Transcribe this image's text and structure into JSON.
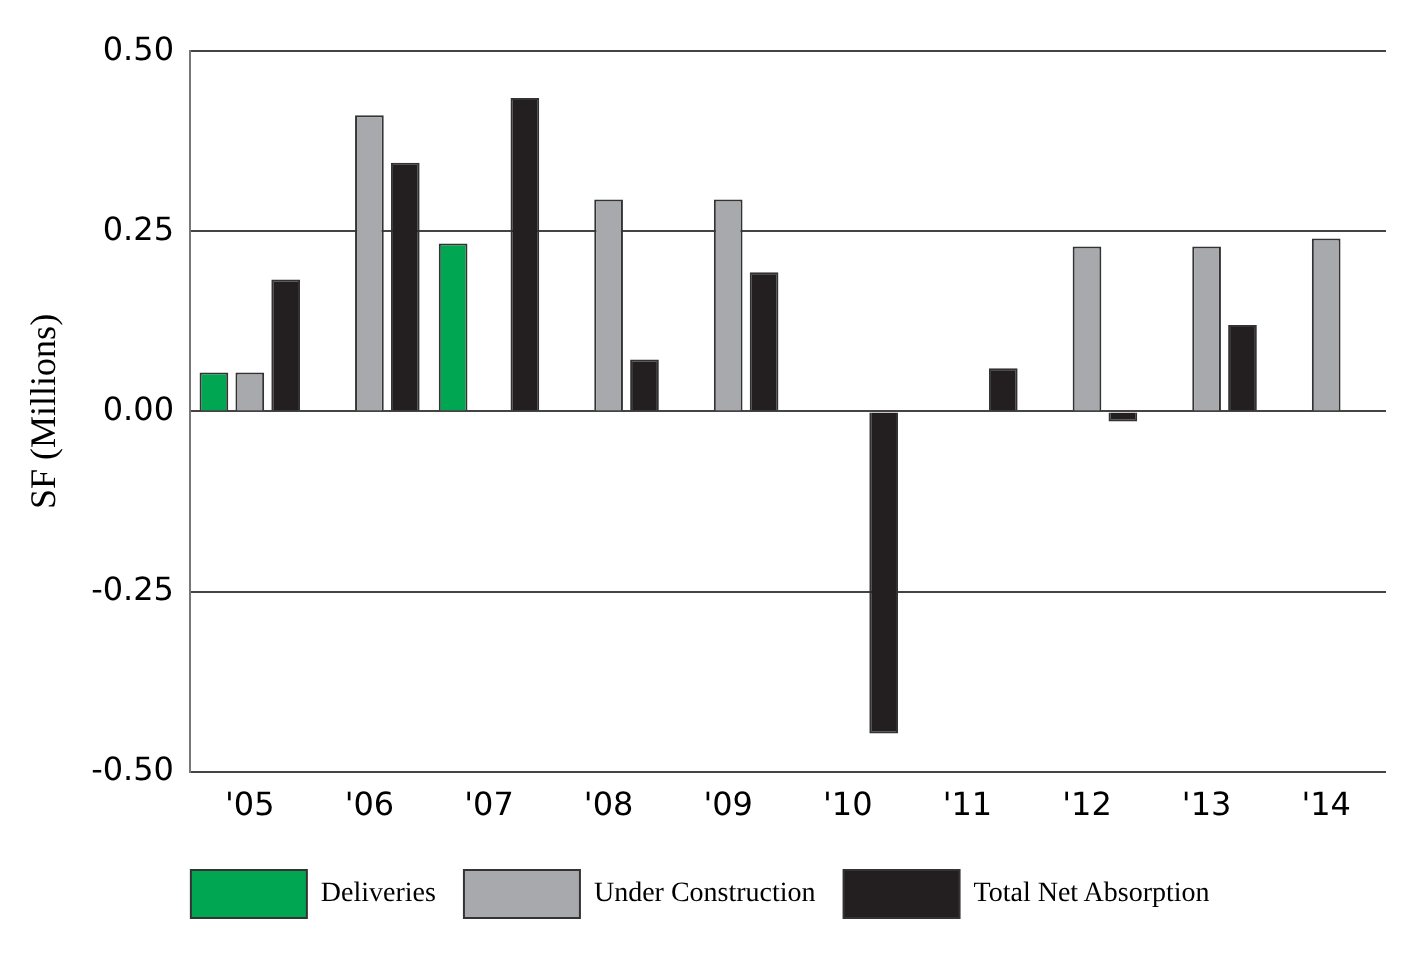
{
  "chart_data": {
    "type": "bar",
    "ylabel": "SF (Millions)",
    "categories": [
      "'05",
      "'06",
      "'07",
      "'08",
      "'09",
      "'10",
      "'11",
      "'12",
      "'13",
      "'14"
    ],
    "series": [
      {
        "name": "Deliveries",
        "color": "#00a651",
        "values": [
          0.054,
          0,
          0.233,
          0,
          0,
          0,
          0,
          0,
          0,
          0
        ]
      },
      {
        "name": "Under Construction",
        "color": "#a7a9ac",
        "values": [
          0.054,
          0.411,
          0,
          0.294,
          0.294,
          0,
          0,
          0.229,
          0.229,
          0.24
        ]
      },
      {
        "name": "Total Net Absorption",
        "color": "#231f20",
        "values": [
          0.183,
          0.345,
          0.435,
          0.072,
          0.193,
          -0.447,
          0.06,
          -0.014,
          0.12,
          0
        ]
      }
    ],
    "ylim": [
      -0.5,
      0.5
    ],
    "yticks": [
      {
        "value": -0.5,
        "label": "-0.50"
      },
      -0.25,
      {
        "value": 0,
        "label": "0.00"
      },
      0.25,
      {
        "value": 0.5,
        "label": "0.50"
      }
    ],
    "grid": "y",
    "legend": "bottom"
  }
}
